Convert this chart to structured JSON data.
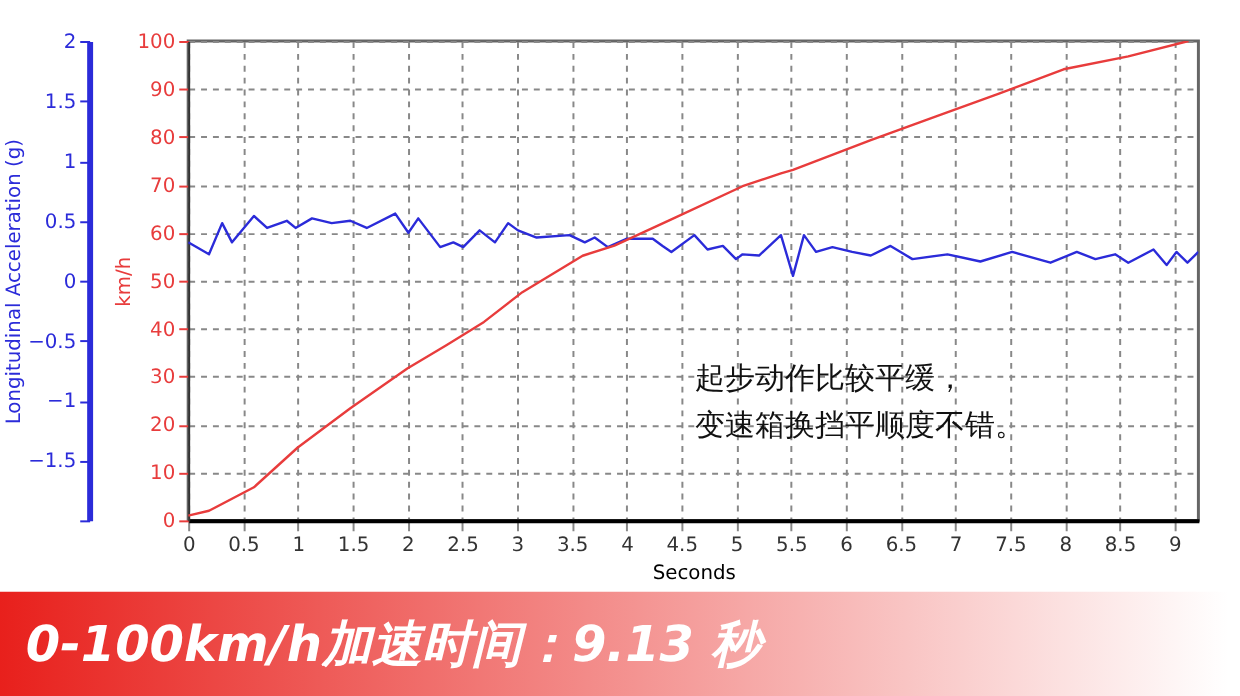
{
  "chart_data": {
    "type": "line",
    "xlabel": "Seconds",
    "ylabel": "Longitudinal Acceleration (g)",
    "y2label": "km/h",
    "xlim": [
      0,
      9.22
    ],
    "xticks": [
      0,
      0.5,
      1,
      1.5,
      2,
      2.5,
      3,
      3.5,
      4,
      4.5,
      5,
      5.5,
      6,
      6.5,
      7,
      7.5,
      8,
      8.5,
      9
    ],
    "ylim": [
      -2,
      2
    ],
    "yticks": [
      {
        "value": -2,
        "label": null
      },
      -1.5,
      -1,
      -0.5,
      0,
      0.5,
      1,
      1.5,
      2
    ],
    "y2lim": [
      0,
      100
    ],
    "y2ticks": [
      0,
      10,
      20,
      30,
      40,
      50,
      60,
      70,
      80,
      90,
      100
    ],
    "grid": true,
    "marker": "none",
    "line_style": "solid",
    "series": [
      {
        "color": "#2b2bd9",
        "axis": "y",
        "x": [
          0,
          0.19,
          0.31,
          0.4,
          0.6,
          0.72,
          0.9,
          0.98,
          1.13,
          1.31,
          1.48,
          1.63,
          1.89,
          2.01,
          2.1,
          2.3,
          2.42,
          2.51,
          2.66,
          2.8,
          2.92,
          3.01,
          3.18,
          3.48,
          3.62,
          3.71,
          3.83,
          4.0,
          4.24,
          4.33,
          4.41,
          4.62,
          4.74,
          4.88,
          5.0,
          5.06,
          5.21,
          5.41,
          5.52,
          5.62,
          5.73,
          5.88,
          6.06,
          6.23,
          6.41,
          6.61,
          6.93,
          7.23,
          7.52,
          7.87,
          8.11,
          8.28,
          8.46,
          8.58,
          8.81,
          8.93,
          9.02,
          9.12,
          9.22
        ],
        "values": [
          0.32,
          0.22,
          0.48,
          0.32,
          0.54,
          0.44,
          0.5,
          0.44,
          0.52,
          0.48,
          0.5,
          0.44,
          0.56,
          0.4,
          0.52,
          0.28,
          0.32,
          0.28,
          0.42,
          0.32,
          0.48,
          0.42,
          0.36,
          0.38,
          0.32,
          0.36,
          0.28,
          0.35,
          0.35,
          0.29,
          0.24,
          0.38,
          0.26,
          0.29,
          0.18,
          0.22,
          0.21,
          0.38,
          0.04,
          0.38,
          0.24,
          0.28,
          0.24,
          0.21,
          0.29,
          0.18,
          0.22,
          0.16,
          0.24,
          0.15,
          0.24,
          0.18,
          0.22,
          0.15,
          0.26,
          0.13,
          0.24,
          0.15,
          0.24
        ]
      },
      {
        "color": "#e83c3c",
        "axis": "y2",
        "x": [
          0,
          0.19,
          0.6,
          1.0,
          1.48,
          2.0,
          2.36,
          2.7,
          3.05,
          3.6,
          3.89,
          4.41,
          5.06,
          5.41,
          5.52,
          6.23,
          6.82,
          7.4,
          7.99,
          8.58,
          9.13
        ],
        "values": [
          1,
          2,
          6.9,
          15.2,
          23.4,
          31.7,
          36.6,
          41.4,
          47.6,
          55.2,
          57.3,
          62.8,
          69.7,
          72.4,
          73.1,
          79.3,
          84.2,
          89,
          94.1,
          96.8,
          100
        ]
      }
    ],
    "annotations": [
      "起步动作比较平缓，",
      "变速箱换挡平顺度不错。",
      "0-100km/h加速时间：9.13 秒"
    ]
  }
}
